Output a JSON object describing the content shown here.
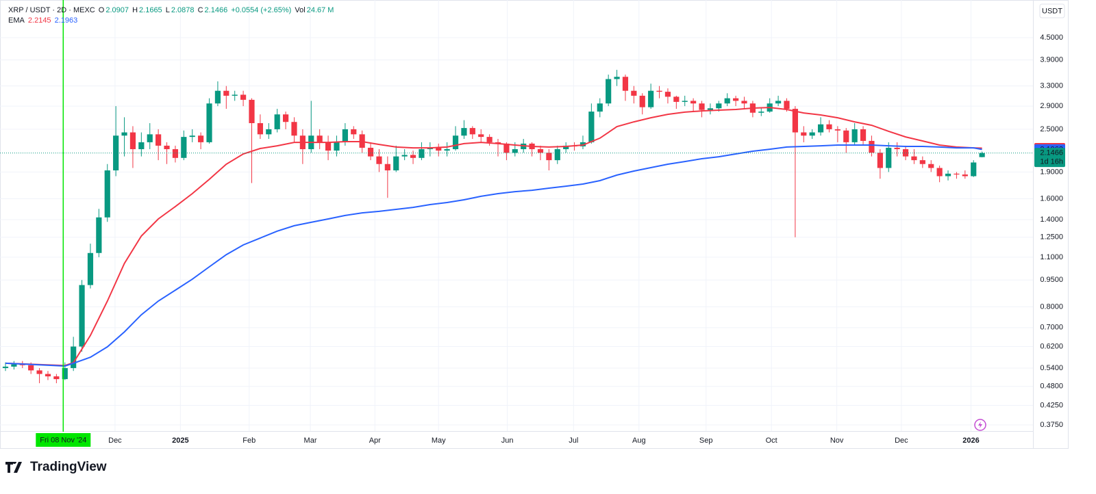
{
  "header": {
    "symbol": "XRP / USDT · 2D · MEXC",
    "open_label": "O",
    "high_label": "H",
    "low_label": "L",
    "close_label": "C",
    "change": "+0.0554 (+2.65%)",
    "volume_label": "Vol",
    "volume": "24.67 M",
    "currency": "USDT",
    "countdown": "1d 16h",
    "brand": "TradingView"
  },
  "chart_data": {
    "type": "candlestick",
    "log": true,
    "grid": true,
    "up_color": "#089981",
    "down_color": "#f23645",
    "xlim": [
      -0.645,
      121
    ],
    "ylim": [
      0.323,
      5.73
    ],
    "xticks": [
      {
        "value": 12.9,
        "label": "Dec"
      },
      {
        "value": 20.6,
        "label": "2025"
      },
      {
        "value": 28.7,
        "label": "Feb"
      },
      {
        "value": 35.9,
        "label": "Mar"
      },
      {
        "value": 43.5,
        "label": "Apr"
      },
      {
        "value": 51.0,
        "label": "May"
      },
      {
        "value": 59.1,
        "label": "Jun"
      },
      {
        "value": 66.9,
        "label": "Jul"
      },
      {
        "value": 74.6,
        "label": "Aug"
      },
      {
        "value": 82.5,
        "label": "Sep"
      },
      {
        "value": 90.2,
        "label": "Oct"
      },
      {
        "value": 97.9,
        "label": "Nov"
      },
      {
        "value": 105.5,
        "label": "Dec"
      },
      {
        "value": 113.7,
        "label": "2026"
      }
    ],
    "yticks": [
      {
        "value": 0.375,
        "label": "0.3750"
      },
      {
        "value": 0.425,
        "label": "0.4250"
      },
      {
        "value": 0.48,
        "label": "0.4800"
      },
      {
        "value": 0.54,
        "label": "0.5400"
      },
      {
        "value": 0.62,
        "label": "0.6200"
      },
      {
        "value": 0.7,
        "label": "0.7000"
      },
      {
        "value": 0.8,
        "label": "0.8000"
      },
      {
        "value": 0.95,
        "label": "0.9500"
      },
      {
        "value": 1.1,
        "label": "1.1000"
      },
      {
        "value": 1.25,
        "label": "1.2500"
      },
      {
        "value": 1.4,
        "label": "1.4000"
      },
      {
        "value": 1.6,
        "label": "1.6000"
      },
      {
        "value": 1.9,
        "label": "1.9000"
      },
      {
        "value": 2.5,
        "label": "2.5000"
      },
      {
        "value": 2.9,
        "label": "2.9000"
      },
      {
        "value": 3.3,
        "label": "3.3000"
      },
      {
        "value": 3.9,
        "label": "3.9000"
      },
      {
        "value": 4.5,
        "label": "4.5000"
      }
    ],
    "crosshair": {
      "x": 6.8,
      "label": "Fri 08 Nov '24",
      "color": "#00e600"
    },
    "open": [
      0.54,
      0.545,
      0.553,
      0.55,
      0.532,
      0.52,
      0.512,
      0.503,
      0.54,
      0.62,
      0.92,
      1.13,
      1.42,
      1.92,
      2.4,
      2.45,
      2.2,
      2.3,
      2.42,
      2.25,
      2.2,
      2.08,
      2.38,
      2.4,
      2.3,
      2.95,
      3.2,
      3.1,
      3.12,
      3.02,
      2.6,
      2.42,
      2.5,
      2.75,
      2.62,
      2.4,
      2.2,
      2.4,
      2.3,
      2.18,
      2.3,
      2.5,
      2.42,
      2.22,
      2.1,
      2.0,
      1.92,
      2.1,
      2.12,
      2.08,
      2.2,
      2.22,
      2.18,
      2.2,
      2.4,
      2.52,
      2.42,
      2.38,
      2.3,
      2.28,
      2.15,
      2.2,
      2.28,
      2.2,
      2.15,
      2.05,
      2.2,
      2.25,
      2.24,
      2.3,
      2.8,
      2.95,
      3.45,
      3.5,
      3.2,
      3.1,
      2.88,
      3.2,
      3.18,
      3.08,
      2.98,
      3.0,
      2.95,
      2.83,
      2.86,
      2.95,
      3.05,
      3.0,
      2.95,
      2.78,
      2.8,
      2.95,
      3.0,
      2.85,
      2.45,
      2.4,
      2.45,
      2.58,
      2.5,
      2.48,
      2.3,
      2.5,
      2.32,
      2.15,
      1.95,
      2.22,
      2.2,
      2.1,
      2.05,
      2.0,
      1.95,
      1.85,
      1.88,
      1.87,
      1.85,
      2.0907
    ],
    "high": [
      0.56,
      0.565,
      0.565,
      0.56,
      0.54,
      0.53,
      0.52,
      0.56,
      0.66,
      0.95,
      1.2,
      1.5,
      2.0,
      2.9,
      2.7,
      2.55,
      2.45,
      2.6,
      2.5,
      2.3,
      2.25,
      2.48,
      2.5,
      2.45,
      3.05,
      3.4,
      3.3,
      3.2,
      3.2,
      3.05,
      2.75,
      2.6,
      2.85,
      2.8,
      2.7,
      2.5,
      3.0,
      2.5,
      2.4,
      2.4,
      2.6,
      2.55,
      2.48,
      2.3,
      2.2,
      2.1,
      2.25,
      2.2,
      2.18,
      2.3,
      2.3,
      2.28,
      2.3,
      2.55,
      2.65,
      2.55,
      2.5,
      2.42,
      2.35,
      2.3,
      2.3,
      2.35,
      2.3,
      2.25,
      2.2,
      2.25,
      2.3,
      2.3,
      2.4,
      2.95,
      3.05,
      3.55,
      3.66,
      3.55,
      3.3,
      3.15,
      3.35,
      3.3,
      3.25,
      3.1,
      3.1,
      3.05,
      3.0,
      2.95,
      3.0,
      3.15,
      3.1,
      3.08,
      3.0,
      2.88,
      3.05,
      3.1,
      3.05,
      2.9,
      2.55,
      2.5,
      2.7,
      2.65,
      2.55,
      2.52,
      2.6,
      2.55,
      2.4,
      2.2,
      2.3,
      2.3,
      2.25,
      2.2,
      2.1,
      2.05,
      1.98,
      1.92,
      1.9,
      1.92,
      2.05,
      2.1665
    ],
    "low": [
      0.53,
      0.535,
      0.54,
      0.52,
      0.49,
      0.5,
      0.49,
      0.5,
      0.53,
      0.6,
      0.9,
      1.1,
      1.38,
      1.85,
      2.1,
      1.95,
      2.1,
      2.2,
      2.05,
      2.0,
      2.02,
      2.05,
      2.3,
      2.2,
      2.28,
      2.9,
      2.85,
      3.0,
      2.9,
      1.77,
      2.35,
      2.35,
      2.45,
      2.5,
      2.3,
      2.0,
      2.15,
      2.2,
      2.05,
      2.1,
      2.25,
      2.35,
      2.15,
      2.05,
      1.9,
      1.61,
      1.9,
      2.05,
      2.0,
      2.05,
      2.1,
      2.1,
      2.1,
      2.18,
      2.35,
      2.35,
      2.3,
      2.25,
      2.1,
      2.05,
      2.1,
      2.15,
      2.1,
      2.05,
      1.92,
      2.0,
      2.15,
      2.18,
      2.2,
      2.28,
      2.7,
      2.9,
      3.3,
      3.0,
      2.95,
      2.75,
      2.85,
      3.05,
      2.95,
      2.85,
      2.9,
      2.8,
      2.7,
      2.75,
      2.8,
      2.9,
      2.9,
      2.85,
      2.7,
      2.72,
      2.78,
      2.9,
      2.8,
      1.25,
      2.3,
      2.35,
      2.4,
      2.45,
      2.3,
      2.15,
      2.25,
      2.25,
      2.1,
      1.82,
      1.9,
      2.1,
      2.05,
      2.0,
      1.95,
      1.9,
      1.78,
      1.8,
      1.82,
      1.82,
      1.84,
      2.0878
    ],
    "close": [
      0.545,
      0.553,
      0.55,
      0.532,
      0.52,
      0.512,
      0.503,
      0.54,
      0.62,
      0.92,
      1.13,
      1.42,
      1.92,
      2.4,
      2.45,
      2.2,
      2.3,
      2.42,
      2.25,
      2.2,
      2.08,
      2.38,
      2.4,
      2.3,
      2.95,
      3.2,
      3.1,
      3.12,
      3.02,
      2.6,
      2.42,
      2.5,
      2.75,
      2.62,
      2.4,
      2.2,
      2.4,
      2.3,
      2.18,
      2.3,
      2.5,
      2.42,
      2.22,
      2.1,
      2.0,
      1.92,
      2.1,
      2.12,
      2.08,
      2.2,
      2.22,
      2.18,
      2.2,
      2.4,
      2.52,
      2.42,
      2.38,
      2.3,
      2.28,
      2.15,
      2.2,
      2.28,
      2.2,
      2.15,
      2.05,
      2.2,
      2.25,
      2.24,
      2.3,
      2.8,
      2.95,
      3.45,
      3.5,
      3.2,
      3.1,
      2.88,
      3.2,
      3.18,
      3.08,
      2.98,
      3.0,
      2.95,
      2.83,
      2.86,
      2.95,
      3.05,
      3.0,
      2.95,
      2.78,
      2.8,
      2.95,
      3.0,
      2.85,
      2.45,
      2.4,
      2.45,
      2.58,
      2.5,
      2.48,
      2.3,
      2.5,
      2.32,
      2.15,
      1.95,
      2.22,
      2.2,
      2.1,
      2.05,
      2.0,
      1.95,
      1.85,
      1.88,
      1.87,
      1.85,
      2.02,
      2.1466
    ],
    "ema": {
      "label": "EMA",
      "x": [
        0,
        7,
        8,
        10,
        12,
        14,
        16,
        18,
        20,
        22,
        24,
        26,
        28,
        30,
        32,
        34,
        36,
        38,
        40,
        42,
        44,
        46,
        48,
        50,
        52,
        54,
        56,
        58,
        60,
        62,
        64,
        66,
        68,
        70,
        72,
        74,
        76,
        78,
        80,
        82,
        84,
        86,
        88,
        90,
        92,
        94,
        96,
        98,
        100,
        102,
        104,
        106,
        108,
        110,
        112,
        114,
        115
      ],
      "series": [
        {
          "color": "#f23645",
          "values": [
            0.557,
            0.549,
            0.559,
            0.666,
            0.83,
            1.057,
            1.26,
            1.406,
            1.522,
            1.654,
            1.813,
            1.998,
            2.134,
            2.21,
            2.248,
            2.298,
            2.298,
            2.298,
            2.309,
            2.309,
            2.268,
            2.23,
            2.219,
            2.219,
            2.23,
            2.28,
            2.298,
            2.28,
            2.259,
            2.239,
            2.23,
            2.239,
            2.259,
            2.361,
            2.542,
            2.622,
            2.691,
            2.751,
            2.79,
            2.812,
            2.826,
            2.838,
            2.863,
            2.875,
            2.838,
            2.776,
            2.74,
            2.691,
            2.622,
            2.565,
            2.467,
            2.38,
            2.319,
            2.259,
            2.23,
            2.219,
            2.2145
          ]
        },
        {
          "color": "#2962ff",
          "values": [
            0.557,
            0.547,
            0.557,
            0.579,
            0.619,
            0.681,
            0.76,
            0.83,
            0.89,
            0.955,
            1.034,
            1.118,
            1.19,
            1.244,
            1.3,
            1.346,
            1.376,
            1.406,
            1.438,
            1.462,
            1.476,
            1.495,
            1.514,
            1.542,
            1.562,
            1.59,
            1.626,
            1.654,
            1.675,
            1.69,
            1.713,
            1.735,
            1.759,
            1.798,
            1.863,
            1.912,
            1.954,
            1.998,
            2.032,
            2.069,
            2.096,
            2.134,
            2.171,
            2.199,
            2.23,
            2.239,
            2.248,
            2.259,
            2.259,
            2.259,
            2.248,
            2.239,
            2.239,
            2.23,
            2.219,
            2.219,
            2.1963
          ]
        }
      ]
    }
  }
}
